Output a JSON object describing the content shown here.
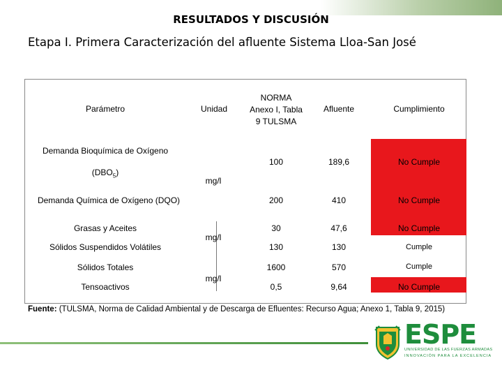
{
  "header": {
    "title": "RESULTADOS Y DISCUSIÓN",
    "subtitle": "Etapa I. Primera Caracterización del afluente Sistema Lloa-San José"
  },
  "table": {
    "headers": {
      "param": "Parámetro",
      "unit": "Unidad",
      "norm_line1": "NORMA",
      "norm_line2": "Anexo I, Tabla",
      "norm_line3": "9 TULSMA",
      "afluente": "Afluente",
      "cumplimiento": "Cumplimiento"
    },
    "units": [
      "mg/l",
      "mg/l",
      "mg/l"
    ],
    "rows": [
      {
        "param": "Demanda Bioquímica de Oxígeno",
        "param2": "(DBO",
        "sub": "5",
        "param2_end": ")",
        "norma": "100",
        "afluente": "189,6",
        "cumple": "No Cumple",
        "status": "fail"
      },
      {
        "param": "Demanda Química de Oxígeno (DQO)",
        "norma": "200",
        "afluente": "410",
        "cumple": "No Cumple",
        "status": "fail"
      },
      {
        "param": "Grasas y Aceites",
        "norma": "30",
        "afluente": "47,6",
        "cumple": "No Cumple",
        "status": "fail"
      },
      {
        "param": "Sólidos Suspendidos Volátiles",
        "norma": "130",
        "afluente": "130",
        "cumple": "Cumple",
        "status": "pass"
      },
      {
        "param": "Sólidos Totales",
        "norma": "1600",
        "afluente": "570",
        "cumple": "Cumple",
        "status": "pass"
      },
      {
        "param": "Tensoactivos",
        "norma": "0,5",
        "afluente": "9,64",
        "cumple": "No Cumple",
        "status": "fail"
      }
    ]
  },
  "source": {
    "label": "Fuente:",
    "text": " (TULSMA, Norma de Calidad Ambiental y de Descarga de Efluentes: Recurso Agua; Anexo 1, Tabla 9, 2015)"
  },
  "brand": {
    "name": "ESPE",
    "line1": "UNIVERSIDAD DE LAS FUERZAS ARMADAS",
    "line2": "INNOVACIÓN PARA LA EXCELENCIA"
  },
  "colors": {
    "fail": "#e8171c",
    "brand_green": "#1e8d3c"
  }
}
